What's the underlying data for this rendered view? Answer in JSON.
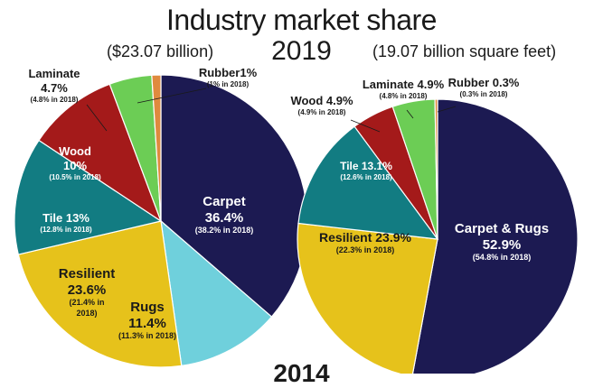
{
  "title": "Industry market share",
  "year": "2019",
  "next_year_partial": "2014",
  "chart_data": [
    {
      "type": "pie",
      "total_label": "($23.07 billion)",
      "colors": [
        "#1c1a52",
        "#6fd0dc",
        "#e6c21b",
        "#127c82",
        "#a41a1a",
        "#6ccd55",
        "#df8a3e"
      ],
      "slices": [
        {
          "name": "Carpet",
          "value": 36.4,
          "value_label": "36.4%",
          "prior_label": "(38.2% in 2018)"
        },
        {
          "name": "Rugs",
          "value": 11.4,
          "value_label": "11.4%",
          "prior_label": "(11.3% in 2018)"
        },
        {
          "name": "Resilient",
          "value": 23.6,
          "value_label": "23.6%",
          "prior_label": "(21.4% in 2018)"
        },
        {
          "name": "Tile",
          "value": 13,
          "value_label": "13%",
          "prior_label": "(12.8% in 2018)"
        },
        {
          "name": "Wood",
          "value": 10,
          "value_label": "10%",
          "prior_label": "(10.5% in 2018)"
        },
        {
          "name": "Laminate",
          "value": 4.7,
          "value_label": "4.7%",
          "prior_label": "(4.8% in 2018)"
        },
        {
          "name": "Rubber",
          "value": 1,
          "value_label": "1%",
          "prior_label": "(1% in 2018)"
        }
      ]
    },
    {
      "type": "pie",
      "total_label": "(19.07 billion square feet)",
      "colors": [
        "#1c1a52",
        "#e6c21b",
        "#127c82",
        "#a41a1a",
        "#6ccd55",
        "#df8a3e"
      ],
      "slices": [
        {
          "name": "Carpet & Rugs",
          "value": 52.9,
          "value_label": "52.9%",
          "prior_label": "(54.8% in 2018)"
        },
        {
          "name": "Resilient",
          "value": 23.9,
          "value_label": "23.9%",
          "prior_label": "(22.3% in 2018)"
        },
        {
          "name": "Tile",
          "value": 13.1,
          "value_label": "13.1%",
          "prior_label": "(12.6% in 2018)"
        },
        {
          "name": "Wood",
          "value": 4.9,
          "value_label": "4.9%",
          "prior_label": "(4.9% in 2018)"
        },
        {
          "name": "Laminate",
          "value": 4.9,
          "value_label": "4.9%",
          "prior_label": "(4.8% in 2018)"
        },
        {
          "name": "Rubber",
          "value": 0.3,
          "value_label": "0.3%",
          "prior_label": "(0.3% in 2018)"
        }
      ]
    }
  ]
}
